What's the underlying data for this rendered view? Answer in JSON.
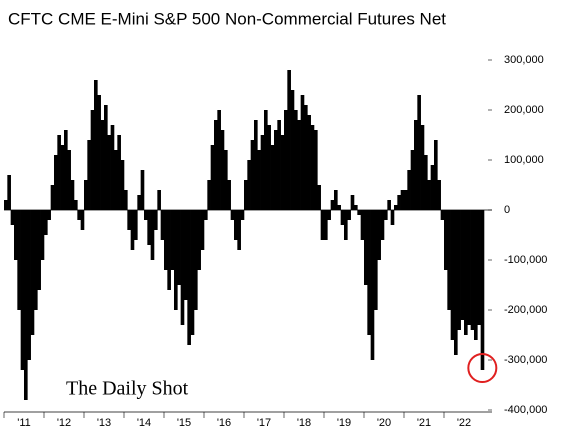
{
  "chart_data": {
    "type": "bar",
    "title": "CFTC CME E-Mini S&P 500 Non-Commercial Futures Net",
    "watermark": "The Daily Shot",
    "color": "#000000",
    "categories": [
      null,
      null,
      null,
      null,
      null,
      null,
      "'11",
      null,
      null,
      null,
      null,
      null,
      null,
      null,
      null,
      null,
      null,
      null,
      "'12",
      null,
      null,
      null,
      null,
      null,
      null,
      null,
      null,
      null,
      null,
      null,
      "'13",
      null,
      null,
      null,
      null,
      null,
      null,
      null,
      null,
      null,
      null,
      null,
      "'14",
      null,
      null,
      null,
      null,
      null,
      null,
      null,
      null,
      null,
      null,
      null,
      "'15",
      null,
      null,
      null,
      null,
      null,
      null,
      null,
      null,
      null,
      null,
      null,
      "'16",
      null,
      null,
      null,
      null,
      null,
      null,
      null,
      null,
      null,
      null,
      null,
      "'17",
      null,
      null,
      null,
      null,
      null,
      null,
      null,
      null,
      null,
      null,
      null,
      "'18",
      null,
      null,
      null,
      null,
      null,
      null,
      null,
      null,
      null,
      null,
      null,
      "'19",
      null,
      null,
      null,
      null,
      null,
      null,
      null,
      null,
      null,
      null,
      null,
      "'20",
      null,
      null,
      null,
      null,
      null,
      null,
      null,
      null,
      null,
      null,
      null,
      "'21",
      null,
      null,
      null,
      null,
      null,
      null,
      null,
      null,
      null,
      null,
      null,
      "'22",
      null,
      null,
      null,
      null,
      null
    ],
    "values": [
      20000,
      70000,
      -30000,
      -100000,
      -200000,
      -320000,
      -380000,
      -300000,
      -250000,
      -200000,
      -160000,
      -100000,
      -50000,
      -20000,
      50000,
      110000,
      150000,
      130000,
      160000,
      120000,
      60000,
      20000,
      -20000,
      -40000,
      60000,
      140000,
      200000,
      260000,
      230000,
      180000,
      210000,
      150000,
      170000,
      120000,
      150000,
      100000,
      40000,
      -40000,
      -80000,
      -60000,
      30000,
      80000,
      -20000,
      -70000,
      -100000,
      -40000,
      40000,
      -60000,
      -120000,
      -160000,
      -120000,
      -200000,
      -150000,
      -230000,
      -180000,
      -270000,
      -250000,
      -200000,
      -120000,
      -80000,
      -20000,
      60000,
      130000,
      180000,
      200000,
      160000,
      120000,
      60000,
      -20000,
      -60000,
      -80000,
      -20000,
      60000,
      100000,
      140000,
      180000,
      120000,
      150000,
      200000,
      170000,
      130000,
      160000,
      180000,
      150000,
      200000,
      280000,
      240000,
      200000,
      180000,
      230000,
      210000,
      190000,
      170000,
      160000,
      50000,
      -60000,
      -60000,
      -20000,
      20000,
      40000,
      10000,
      -30000,
      -60000,
      -20000,
      30000,
      10000,
      -10000,
      -60000,
      -150000,
      -250000,
      -300000,
      -200000,
      -100000,
      -60000,
      -20000,
      20000,
      -30000,
      10000,
      30000,
      40000,
      40000,
      80000,
      120000,
      180000,
      230000,
      170000,
      110000,
      60000,
      90000,
      140000,
      60000,
      -20000,
      -120000,
      -200000,
      -260000,
      -290000,
      -240000,
      -220000,
      -250000,
      -230000,
      -240000,
      -260000,
      -230000,
      -320000
    ],
    "ylim": [
      -400000,
      300000
    ],
    "yticks": [
      {
        "value": -400000,
        "label": "-400,000"
      },
      {
        "value": -300000,
        "label": "-300,000"
      },
      {
        "value": -200000,
        "label": "-200,000"
      },
      {
        "value": -100000,
        "label": "-100,000"
      },
      0,
      {
        "value": 100000,
        "label": "100,000"
      },
      {
        "value": 200000,
        "label": "200,000"
      },
      {
        "value": 300000,
        "label": "300,000"
      }
    ],
    "grid": false
  }
}
